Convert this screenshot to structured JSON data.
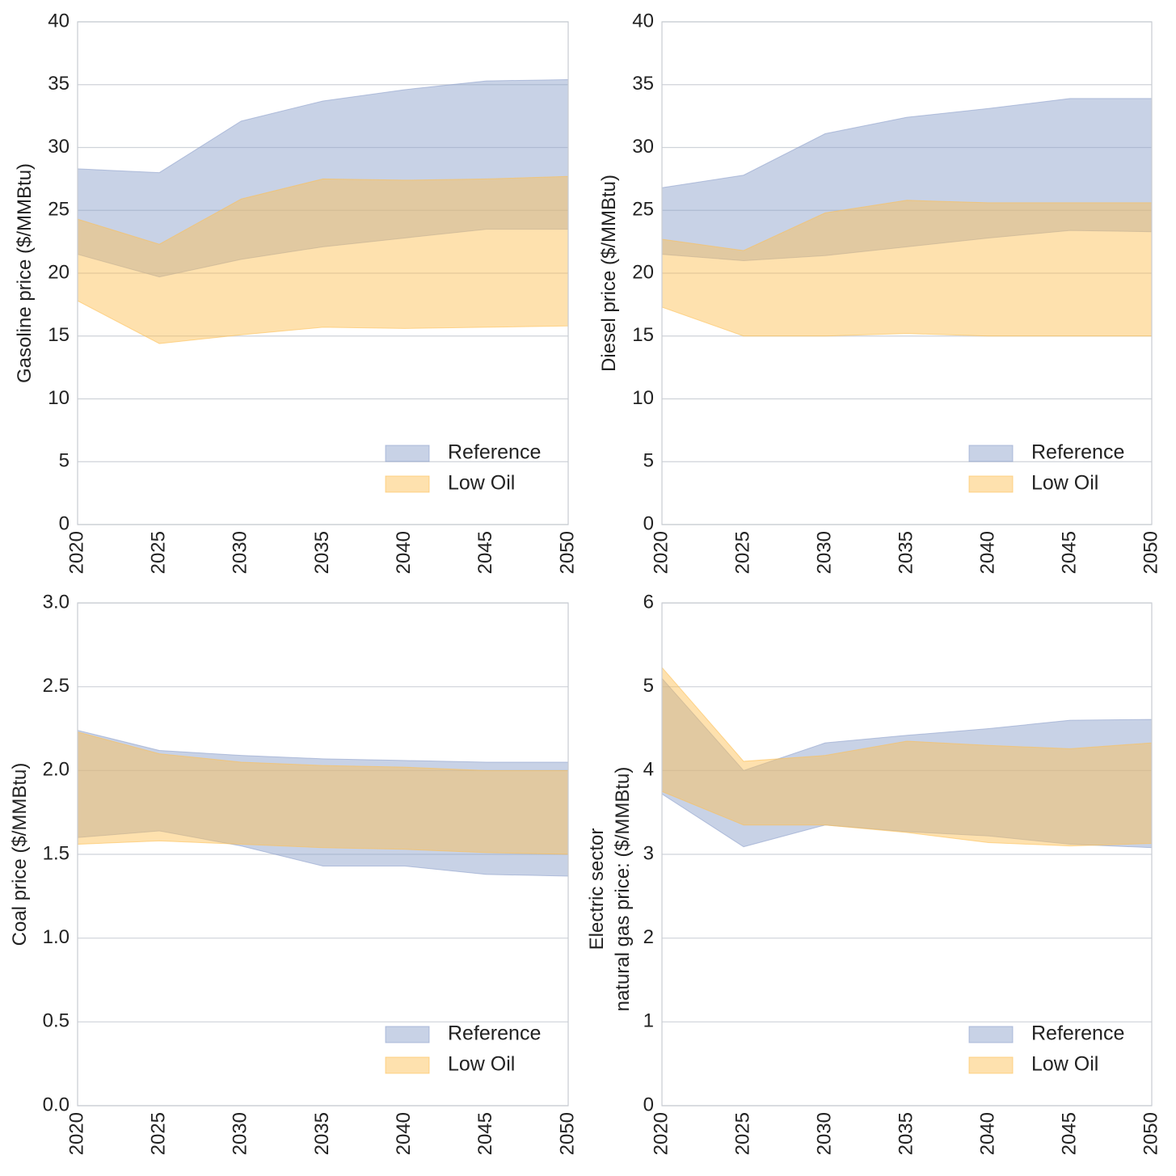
{
  "colors": {
    "reference": "#8da0cb",
    "low_oil": "#fdc055",
    "grid": "#cfd3d9",
    "frame": "#c8ccd2"
  },
  "legend": [
    "Reference",
    "Low Oil"
  ],
  "chart_data": [
    {
      "type": "area",
      "title": "",
      "xlabel": "",
      "ylabel": "Gasoline price ($/MMBtu)",
      "x": [
        2020,
        2025,
        2030,
        2035,
        2040,
        2045,
        2050
      ],
      "x_ticks": [
        "2020",
        "2025",
        "2030",
        "2035",
        "2040",
        "2045",
        "2050"
      ],
      "ylim": [
        0,
        40
      ],
      "y_ticks": [
        "0",
        "5",
        "10",
        "15",
        "20",
        "25",
        "30",
        "35",
        "40"
      ],
      "y_tick_values": [
        0,
        5,
        10,
        15,
        20,
        25,
        30,
        35,
        40
      ],
      "grid": true,
      "legend_position": "lower-right",
      "series": [
        {
          "name": "Reference",
          "low": [
            21.5,
            19.7,
            21.1,
            22.1,
            22.8,
            23.5,
            23.5
          ],
          "high": [
            28.3,
            28.0,
            32.1,
            33.7,
            34.6,
            35.3,
            35.4
          ]
        },
        {
          "name": "Low Oil",
          "low": [
            17.8,
            14.4,
            15.1,
            15.7,
            15.6,
            15.7,
            15.8
          ],
          "high": [
            24.3,
            22.3,
            25.9,
            27.5,
            27.4,
            27.5,
            27.7
          ]
        }
      ]
    },
    {
      "type": "area",
      "title": "",
      "xlabel": "",
      "ylabel": "Diesel price ($/MMBtu)",
      "x": [
        2020,
        2025,
        2030,
        2035,
        2040,
        2045,
        2050
      ],
      "x_ticks": [
        "2020",
        "2025",
        "2030",
        "2035",
        "2040",
        "2045",
        "2050"
      ],
      "ylim": [
        0,
        40
      ],
      "y_ticks": [
        "0",
        "5",
        "10",
        "15",
        "20",
        "25",
        "30",
        "35",
        "40"
      ],
      "y_tick_values": [
        0,
        5,
        10,
        15,
        20,
        25,
        30,
        35,
        40
      ],
      "grid": true,
      "legend_position": "lower-right",
      "series": [
        {
          "name": "Reference",
          "low": [
            21.5,
            21.0,
            21.4,
            22.1,
            22.8,
            23.4,
            23.3
          ],
          "high": [
            26.8,
            27.8,
            31.1,
            32.4,
            33.1,
            33.9,
            33.9
          ]
        },
        {
          "name": "Low Oil",
          "low": [
            17.3,
            15.0,
            15.0,
            15.2,
            15.0,
            15.0,
            15.0
          ],
          "high": [
            22.7,
            21.8,
            24.8,
            25.8,
            25.6,
            25.6,
            25.6
          ]
        }
      ]
    },
    {
      "type": "area",
      "title": "",
      "xlabel": "",
      "ylabel": "Coal price ($/MMBtu)",
      "x": [
        2020,
        2025,
        2030,
        2035,
        2040,
        2045,
        2050
      ],
      "x_ticks": [
        "2020",
        "2025",
        "2030",
        "2035",
        "2040",
        "2045",
        "2050"
      ],
      "ylim": [
        0,
        3
      ],
      "y_ticks": [
        "0.0",
        "0.5",
        "1.0",
        "1.5",
        "2.0",
        "2.5",
        "3.0"
      ],
      "y_tick_values": [
        0,
        0.5,
        1.0,
        1.5,
        2.0,
        2.5,
        3.0
      ],
      "grid": true,
      "legend_position": "lower-right",
      "series": [
        {
          "name": "Reference",
          "low": [
            1.6,
            1.64,
            1.55,
            1.43,
            1.43,
            1.38,
            1.37
          ],
          "high": [
            2.24,
            2.12,
            2.09,
            2.07,
            2.06,
            2.05,
            2.05
          ]
        },
        {
          "name": "Low Oil",
          "low": [
            1.56,
            1.58,
            1.56,
            1.54,
            1.53,
            1.51,
            1.5
          ],
          "high": [
            2.23,
            2.1,
            2.05,
            2.03,
            2.02,
            2.0,
            2.0
          ]
        }
      ]
    },
    {
      "type": "area",
      "title": "",
      "xlabel": "",
      "ylabel": "Electric sector\nnatural gas price:  ($/MMBtu)",
      "x": [
        2020,
        2025,
        2030,
        2035,
        2040,
        2045,
        2050
      ],
      "x_ticks": [
        "2020",
        "2025",
        "2030",
        "2035",
        "2040",
        "2045",
        "2050"
      ],
      "ylim": [
        0,
        6
      ],
      "y_ticks": [
        "0",
        "1",
        "2",
        "3",
        "4",
        "5",
        "6"
      ],
      "y_tick_values": [
        0,
        1,
        2,
        3,
        4,
        5,
        6
      ],
      "grid": true,
      "legend_position": "lower-right",
      "series": [
        {
          "name": "Reference",
          "low": [
            3.72,
            3.09,
            3.35,
            3.27,
            3.22,
            3.12,
            3.08
          ],
          "high": [
            5.1,
            4.0,
            4.33,
            4.42,
            4.5,
            4.6,
            4.61
          ]
        },
        {
          "name": "Low Oil",
          "low": [
            3.75,
            3.35,
            3.35,
            3.26,
            3.14,
            3.1,
            3.13
          ],
          "high": [
            5.23,
            4.11,
            4.18,
            4.35,
            4.3,
            4.26,
            4.33
          ]
        }
      ]
    }
  ]
}
